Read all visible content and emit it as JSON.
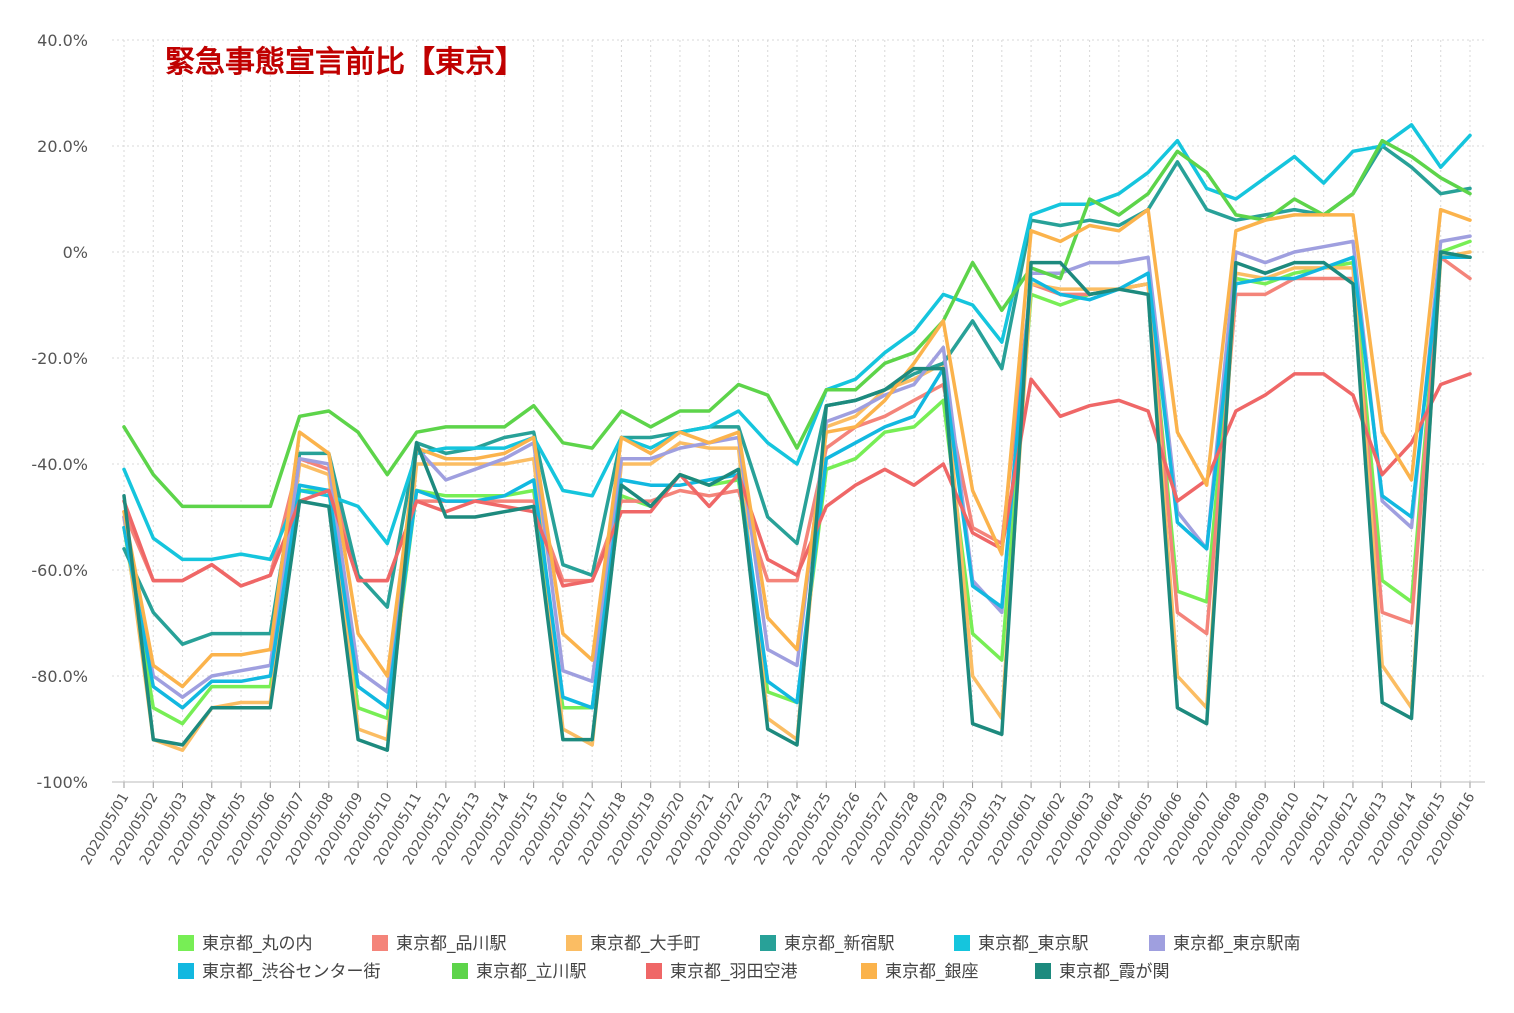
{
  "chart_data": {
    "type": "line",
    "title": "緊急事態宣言前比【東京】",
    "xlabel": "",
    "ylabel": "",
    "ylim": [
      -100,
      40
    ],
    "grid": true,
    "legend_position": "bottom",
    "y_ticks": [
      {
        "value": 40,
        "label": "40.0%"
      },
      {
        "value": 20,
        "label": "20.0%"
      },
      {
        "value": 0,
        "label": "0%"
      },
      {
        "value": -20,
        "label": "-20.0%"
      },
      {
        "value": -40,
        "label": "-40.0%"
      },
      {
        "value": -60,
        "label": "-60.0%"
      },
      {
        "value": -80,
        "label": "-80.0%"
      },
      {
        "value": -100,
        "label": "-100%"
      }
    ],
    "categories": [
      "2020/05/01",
      "2020/05/02",
      "2020/05/03",
      "2020/05/04",
      "2020/05/05",
      "2020/05/06",
      "2020/05/07",
      "2020/05/08",
      "2020/05/09",
      "2020/05/10",
      "2020/05/11",
      "2020/05/12",
      "2020/05/13",
      "2020/05/14",
      "2020/05/15",
      "2020/05/16",
      "2020/05/17",
      "2020/05/18",
      "2020/05/19",
      "2020/05/20",
      "2020/05/21",
      "2020/05/22",
      "2020/05/23",
      "2020/05/24",
      "2020/05/25",
      "2020/05/26",
      "2020/05/27",
      "2020/05/28",
      "2020/05/29",
      "2020/05/30",
      "2020/05/31",
      "2020/06/01",
      "2020/06/02",
      "2020/06/03",
      "2020/06/04",
      "2020/06/05",
      "2020/06/06",
      "2020/06/07",
      "2020/06/08",
      "2020/06/09",
      "2020/06/10",
      "2020/06/11",
      "2020/06/12",
      "2020/06/13",
      "2020/06/14",
      "2020/06/15",
      "2020/06/16"
    ],
    "series": [
      {
        "name": "東京都_丸の内",
        "color": "#77ee55",
        "values": [
          -52,
          -86,
          -89,
          -82,
          -82,
          -82,
          -45,
          -45,
          -86,
          -88,
          -45,
          -46,
          -46,
          -46,
          -45,
          -86,
          -86,
          -46,
          -48,
          -42,
          -44,
          -43,
          -83,
          -85,
          -41,
          -39,
          -34,
          -33,
          -28,
          -72,
          -77,
          -8,
          -10,
          -8,
          -7,
          -6,
          -64,
          -66,
          -5,
          -6,
          -4,
          -3,
          -2,
          -62,
          -66,
          0,
          2
        ]
      },
      {
        "name": "東京都_品川駅",
        "color": "#f4847a",
        "values": [
          -49,
          -62,
          -62,
          -59,
          -63,
          -61,
          -39,
          -41,
          -62,
          -62,
          -47,
          -47,
          -47,
          -47,
          -47,
          -62,
          -62,
          -47,
          -47,
          -45,
          -46,
          -45,
          -62,
          -62,
          -37,
          -33,
          -31,
          -28,
          -25,
          -52,
          -55,
          -6,
          -8,
          -8,
          -7,
          -6,
          -68,
          -72,
          -8,
          -8,
          -5,
          -5,
          -5,
          -68,
          -70,
          -1,
          -5
        ]
      },
      {
        "name": "東京都_大手町",
        "color": "#fbbd63",
        "values": [
          -50,
          -92,
          -94,
          -86,
          -85,
          -85,
          -40,
          -42,
          -90,
          -92,
          -40,
          -40,
          -40,
          -40,
          -39,
          -90,
          -93,
          -40,
          -40,
          -36,
          -37,
          -37,
          -88,
          -92,
          -33,
          -31,
          -26,
          -24,
          -21,
          -80,
          -88,
          -6,
          -7,
          -7,
          -7,
          -6,
          -80,
          -86,
          -4,
          -5,
          -3,
          -3,
          -3,
          -78,
          -86,
          -1,
          0
        ]
      },
      {
        "name": "東京都_新宿駅",
        "color": "#28a198",
        "values": [
          -56,
          -68,
          -74,
          -72,
          -72,
          -72,
          -38,
          -38,
          -61,
          -67,
          -36,
          -38,
          -37,
          -35,
          -34,
          -59,
          -61,
          -35,
          -35,
          -34,
          -33,
          -33,
          -50,
          -55,
          -29,
          -28,
          -26,
          -23,
          -21,
          -13,
          -22,
          6,
          5,
          6,
          5,
          8,
          17,
          8,
          6,
          7,
          8,
          7,
          11,
          20,
          16,
          11,
          12
        ]
      },
      {
        "name": "東京都_東京駅",
        "color": "#15c5dd",
        "values": [
          -41,
          -54,
          -58,
          -58,
          -57,
          -58,
          -45,
          -46,
          -48,
          -55,
          -38,
          -37,
          -37,
          -37,
          -35,
          -45,
          -46,
          -35,
          -37,
          -34,
          -33,
          -30,
          -36,
          -40,
          -26,
          -24,
          -19,
          -15,
          -8,
          -10,
          -17,
          7,
          9,
          9,
          11,
          15,
          21,
          12,
          10,
          14,
          18,
          13,
          19,
          20,
          24,
          16,
          22
        ]
      },
      {
        "name": "東京都_東京駅南",
        "color": "#9f9fdf",
        "values": [
          -50,
          -80,
          -84,
          -80,
          -79,
          -78,
          -39,
          -40,
          -79,
          -83,
          -37,
          -43,
          -41,
          -39,
          -36,
          -79,
          -81,
          -39,
          -39,
          -37,
          -36,
          -35,
          -75,
          -78,
          -32,
          -30,
          -27,
          -25,
          -18,
          -62,
          -68,
          -4,
          -4,
          -2,
          -2,
          -1,
          -49,
          -56,
          0,
          -2,
          0,
          1,
          2,
          -47,
          -52,
          2,
          3
        ]
      },
      {
        "name": "東京都_渋谷センター街",
        "color": "#12b8e0",
        "values": [
          -52,
          -82,
          -86,
          -81,
          -81,
          -80,
          -44,
          -45,
          -82,
          -86,
          -45,
          -47,
          -47,
          -46,
          -43,
          -84,
          -86,
          -43,
          -44,
          -44,
          -43,
          -42,
          -81,
          -85,
          -39,
          -36,
          -33,
          -31,
          -22,
          -63,
          -67,
          -5,
          -8,
          -9,
          -7,
          -4,
          -51,
          -56,
          -6,
          -5,
          -5,
          -3,
          -1,
          -46,
          -50,
          -1,
          -1
        ]
      },
      {
        "name": "東京都_立川駅",
        "color": "#5dd44a",
        "values": [
          -33,
          -42,
          -48,
          -48,
          -48,
          -48,
          -31,
          -30,
          -34,
          -42,
          -34,
          -33,
          -33,
          -33,
          -29,
          -36,
          -37,
          -30,
          -33,
          -30,
          -30,
          -25,
          -27,
          -37,
          -26,
          -26,
          -21,
          -19,
          -13,
          -2,
          -11,
          -3,
          -5,
          10,
          7,
          11,
          19,
          15,
          7,
          6,
          10,
          7,
          11,
          21,
          18,
          14,
          11
        ]
      },
      {
        "name": "東京都_羽田空港",
        "color": "#ef6767",
        "values": [
          -47,
          -62,
          -62,
          -59,
          -63,
          -61,
          -47,
          -45,
          -62,
          -62,
          -47,
          -49,
          -47,
          -48,
          -49,
          -63,
          -62,
          -49,
          -49,
          -42,
          -48,
          -42,
          -58,
          -61,
          -48,
          -44,
          -41,
          -44,
          -40,
          -53,
          -56,
          -24,
          -31,
          -29,
          -28,
          -30,
          -47,
          -43,
          -30,
          -27,
          -23,
          -23,
          -27,
          -42,
          -36,
          -25,
          -23
        ]
      },
      {
        "name": "東京都_銀座",
        "color": "#fbb34c",
        "values": [
          -49,
          -78,
          -82,
          -76,
          -76,
          -75,
          -34,
          -38,
          -72,
          -80,
          -37,
          -39,
          -39,
          -38,
          -35,
          -72,
          -77,
          -35,
          -38,
          -34,
          -36,
          -34,
          -69,
          -75,
          -34,
          -33,
          -28,
          -21,
          -13,
          -45,
          -57,
          4,
          2,
          5,
          4,
          8,
          -34,
          -44,
          4,
          6,
          7,
          7,
          7,
          -34,
          -43,
          8,
          6
        ]
      },
      {
        "name": "東京都_霞が関",
        "color": "#1d8a7e",
        "values": [
          -46,
          -92,
          -93,
          -86,
          -86,
          -86,
          -47,
          -48,
          -92,
          -94,
          -36,
          -50,
          -50,
          -49,
          -48,
          -92,
          -92,
          -44,
          -48,
          -42,
          -44,
          -41,
          -90,
          -93,
          -29,
          -28,
          -26,
          -22,
          -22,
          -89,
          -91,
          -2,
          -2,
          -8,
          -7,
          -8,
          -86,
          -89,
          -2,
          -4,
          -2,
          -2,
          -6,
          -85,
          -88,
          0,
          -1
        ]
      }
    ]
  }
}
